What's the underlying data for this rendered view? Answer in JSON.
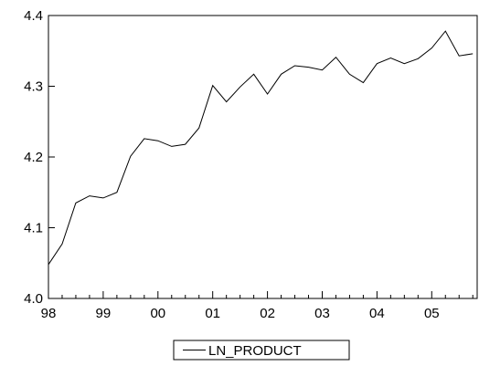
{
  "chart_data": {
    "type": "line",
    "title": "",
    "xlabel": "",
    "ylabel": "",
    "xlim": [
      1998.0,
      2005.83
    ],
    "ylim": [
      4.0,
      4.4
    ],
    "grid": false,
    "legend_position": "bottom-center",
    "x_ticks": [
      {
        "value": 1998,
        "label": "98"
      },
      {
        "value": 1999,
        "label": "99"
      },
      {
        "value": 2000,
        "label": "00"
      },
      {
        "value": 2001,
        "label": "01"
      },
      {
        "value": 2002,
        "label": "02"
      },
      {
        "value": 2003,
        "label": "03"
      },
      {
        "value": 2004,
        "label": "04"
      },
      {
        "value": 2005,
        "label": "05"
      }
    ],
    "y_ticks": [
      {
        "value": 4.0,
        "label": "4.0"
      },
      {
        "value": 4.1,
        "label": "4.1"
      },
      {
        "value": 4.2,
        "label": "4.2"
      },
      {
        "value": 4.3,
        "label": "4.3"
      },
      {
        "value": 4.4,
        "label": "4.4"
      }
    ],
    "series": [
      {
        "name": "LN_PRODUCT",
        "color": "#000000",
        "x": [
          "1998Q1",
          "1998Q2",
          "1998Q3",
          "1998Q4",
          "1999Q1",
          "1999Q2",
          "1999Q3",
          "1999Q4",
          "2000Q1",
          "2000Q2",
          "2000Q3",
          "2000Q4",
          "2001Q1",
          "2001Q2",
          "2001Q3",
          "2001Q4",
          "2002Q1",
          "2002Q2",
          "2002Q3",
          "2002Q4",
          "2003Q1",
          "2003Q2",
          "2003Q3",
          "2003Q4",
          "2004Q1",
          "2004Q2",
          "2004Q3",
          "2004Q4",
          "2005Q1",
          "2005Q2",
          "2005Q3",
          "2005Q4"
        ],
        "values": [
          4.048,
          4.077,
          4.135,
          4.145,
          4.142,
          4.15,
          4.201,
          4.226,
          4.223,
          4.215,
          4.218,
          4.241,
          4.301,
          4.278,
          4.299,
          4.317,
          4.289,
          4.317,
          4.329,
          4.327,
          4.323,
          4.341,
          4.317,
          4.305,
          4.332,
          4.34,
          4.332,
          4.339,
          4.354,
          4.378,
          4.343,
          4.346
        ]
      }
    ]
  }
}
